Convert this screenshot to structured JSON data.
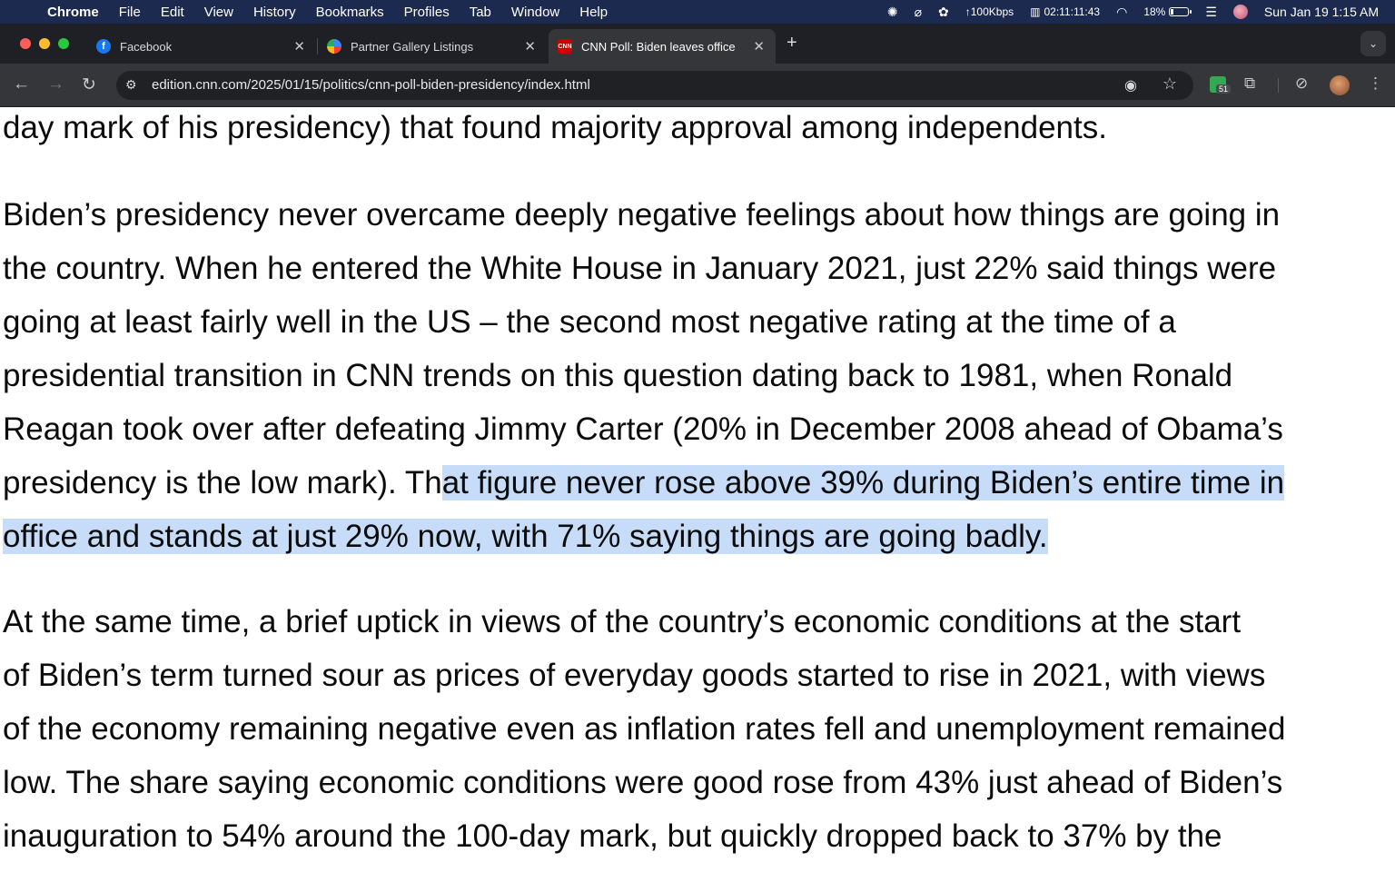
{
  "menubar": {
    "app_name": "Chrome",
    "menus": [
      "File",
      "Edit",
      "View",
      "History",
      "Bookmarks",
      "Profiles",
      "Tab",
      "Window",
      "Help"
    ],
    "network_speed": "↑100Kbps",
    "timer": "02:11:11:43",
    "battery_percent": "18%",
    "battery_level": 0.18,
    "datetime": "Sun Jan 19  1:15 AM"
  },
  "tabs": [
    {
      "title": "Facebook",
      "favicon": "facebook-icon"
    },
    {
      "title": "Partner Gallery Listings",
      "favicon": "partner-icon"
    },
    {
      "title": "CNN Poll: Biden leaves office",
      "favicon": "cnn-icon",
      "active": true
    }
  ],
  "toolbar": {
    "url": "edition.cnn.com/2025/01/15/politics/cnn-poll-biden-presidency/index.html",
    "extension_badge_count": "51"
  },
  "article": {
    "p0": {
      "lines": [
        "day mark of his presidency) that found majority approval among independents."
      ]
    },
    "p1": {
      "lines": [
        "Biden’s presidency never overcame deeply negative feelings about how things are going in",
        "the country. When he entered the White House in January 2021, just 22% said things were",
        "going at least fairly well in the US – the second most negative rating at the time of a",
        "presidential transition in CNN trends on this question dating back to 1981, when Ronald",
        "Reagan took over after defeating Jimmy Carter (20% in December 2008 ahead of Obama’s"
      ],
      "line6_plain": "presidency is the low mark). Th",
      "line6_selected": "at figure never rose above 39% during Biden’s entire time in",
      "line7_selected": "office and stands at just 29% now, with 71% saying things are going badly."
    },
    "p2": {
      "lines": [
        "At the same time, a brief uptick in views of the country’s economic conditions at the start",
        "of Biden’s term turned sour as prices of everyday goods started to rise in 2021, with views",
        "of the economy remaining negative even as inflation rates fell and unemployment remained",
        "low. The share saying economic conditions were good rose from 43% just ahead of Biden’s",
        "inauguration to 54% around the 100-day mark, but quickly dropped back to 37% by the"
      ]
    }
  },
  "colors": {
    "menubar_bg": "#1c2a4f",
    "tabstrip_bg": "#1f2025",
    "toolbar_bg": "#35363a",
    "selection": "#c6dcf8"
  }
}
